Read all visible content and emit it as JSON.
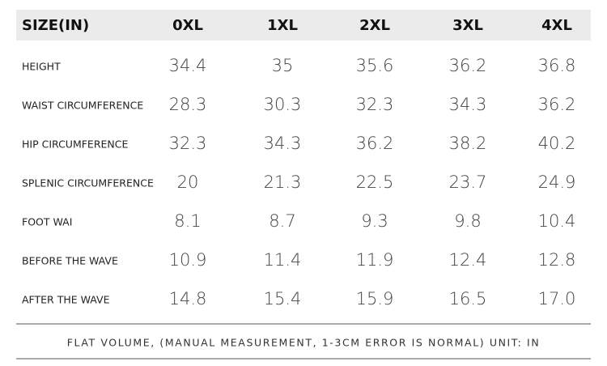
{
  "table": {
    "header": [
      "SIZE(IN)",
      "0XL",
      "1XL",
      "2XL",
      "3XL",
      "4XL"
    ],
    "rows": [
      [
        "HEIGHT",
        "34.4",
        "35",
        "35.6",
        "36.2",
        "36.8"
      ],
      [
        "WAIST CIRCUMFERENCE",
        "28.3",
        "30.3",
        "32.3",
        "34.3",
        "36.2"
      ],
      [
        "HIP CIRCUMFERENCE",
        "32.3",
        "34.3",
        "36.2",
        "38.2",
        "40.2"
      ],
      [
        "SPLENIC CIRCUMFERENCE",
        "20",
        "21.3",
        "22.5",
        "23.7",
        "24.9"
      ],
      [
        "FOOT WAI",
        "8.1",
        "8.7",
        "9.3",
        "9.8",
        "10.4"
      ],
      [
        "BEFORE THE WAVE",
        "10.9",
        "11.4",
        "11.9",
        "12.4",
        "12.8"
      ],
      [
        "AFTER THE WAVE",
        "14.8",
        "15.4",
        "15.9",
        "16.5",
        "17.0"
      ]
    ]
  },
  "footer": {
    "note": "FLAT VOLUME, (MANUAL MEASUREMENT, 1-3CM ERROR IS NORMAL) UNIT: IN"
  }
}
